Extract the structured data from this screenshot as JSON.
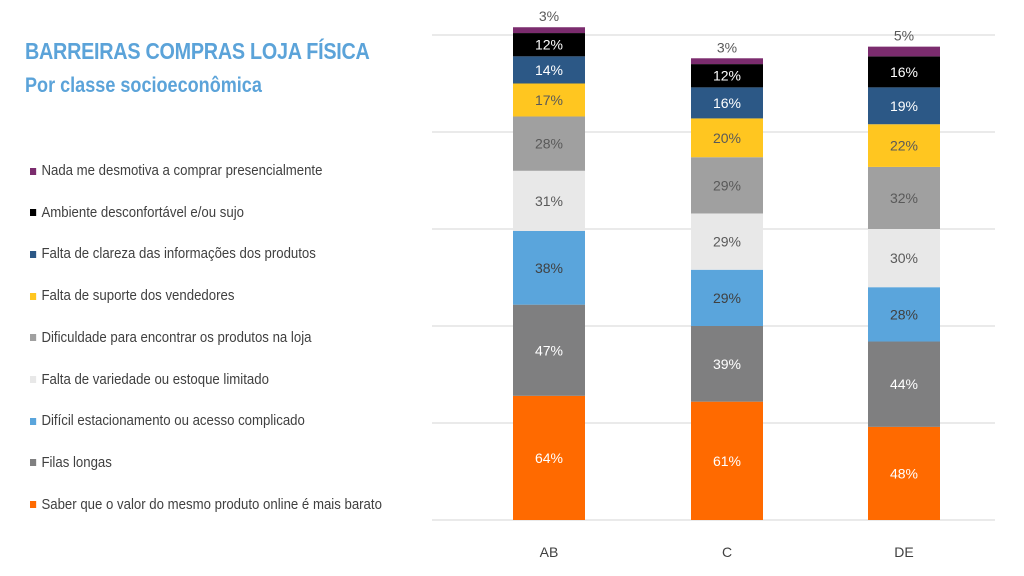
{
  "chart_data": {
    "type": "bar",
    "stacked": true,
    "title": "BARREIRAS COMPRAS LOJA FÍSICA",
    "subtitle": "Por classe socioeconômica",
    "categories": [
      "AB",
      "C",
      "DE"
    ],
    "ylim": [
      0,
      250
    ],
    "grid": true,
    "legend_position": "left",
    "series": [
      {
        "name": "Saber que o valor do mesmo produto online é mais barato",
        "values": [
          64,
          61,
          48
        ],
        "color": "#ff6a00",
        "label_color": "#ffffff"
      },
      {
        "name": "Filas longas",
        "values": [
          47,
          39,
          44
        ],
        "color": "#7f7f80",
        "label_color": "#ffffff"
      },
      {
        "name": "Difícil estacionamento ou acesso complicado",
        "values": [
          38,
          29,
          28
        ],
        "color": "#5aa5dc",
        "label_color": "#404040"
      },
      {
        "name": "Falta de variedade ou estoque limitado",
        "values": [
          31,
          29,
          30
        ],
        "color": "#e8e8e8",
        "label_color": "#595959"
      },
      {
        "name": "Dificuldade para encontrar os produtos na loja",
        "values": [
          28,
          29,
          32
        ],
        "color": "#a0a0a0",
        "label_color": "#595959"
      },
      {
        "name": "Falta de suporte dos vendedores",
        "values": [
          17,
          20,
          22
        ],
        "color": "#ffc620",
        "label_color": "#595959"
      },
      {
        "name": "Falta de clareza das informações dos produtos",
        "values": [
          14,
          16,
          19
        ],
        "color": "#2c5886",
        "label_color": "#ffffff"
      },
      {
        "name": "Ambiente desconfortável e/ou sujo",
        "values": [
          12,
          12,
          16
        ],
        "color": "#000000",
        "label_color": "#ffffff"
      },
      {
        "name": "Nada me desmotiva a comprar presencialmente",
        "values": [
          3,
          3,
          5
        ],
        "color": "#7b2c6e",
        "label_color": "#595959"
      }
    ]
  }
}
